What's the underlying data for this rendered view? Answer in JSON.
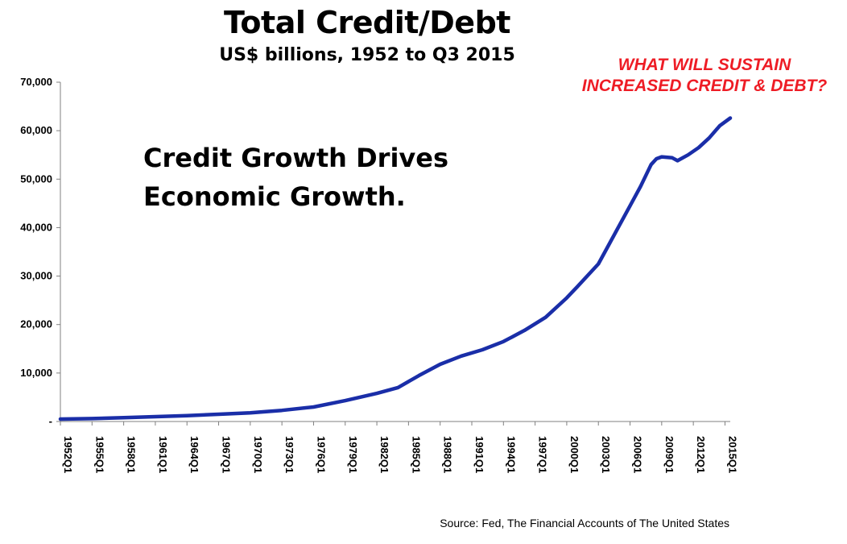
{
  "chart_data": {
    "type": "line",
    "title": "Total Credit/Debt",
    "subtitle": "US$ billions, 1952 to Q3 2015",
    "annotations": [
      "WHAT WILL SUSTAIN",
      "INCREASED CREDIT & DEBT?"
    ],
    "headline": [
      "Credit Growth Drives",
      "Economic Growth."
    ],
    "source": "Source: Fed, The Financial Accounts of The United States",
    "ylim": [
      0,
      70000
    ],
    "y_ticks": [
      0,
      10000,
      20000,
      30000,
      40000,
      50000,
      60000,
      70000
    ],
    "y_tick_labels": [
      "-",
      "10,000",
      "20,000",
      "30,000",
      "40,000",
      "50,000",
      "60,000",
      "70,000"
    ],
    "x_tick_labels": [
      "1952Q1",
      "1955Q1",
      "1958Q1",
      "1961Q1",
      "1964Q1",
      "1967Q1",
      "1970Q1",
      "1973Q1",
      "1976Q1",
      "1979Q1",
      "1982Q1",
      "1985Q1",
      "1988Q1",
      "1991Q1",
      "1994Q1",
      "1997Q1",
      "2000Q1",
      "2003Q1",
      "2006Q1",
      "2009Q1",
      "2012Q1",
      "2015Q1"
    ],
    "xlim": [
      1952.0,
      2015.5
    ],
    "grid": false,
    "line_color": "#1a2ea8",
    "series": [
      {
        "x": [
          1952.0,
          1955.0,
          1958.0,
          1961.0,
          1964.0,
          1967.0,
          1970.0,
          1973.0,
          1976.0,
          1979.0,
          1982.0,
          1984.0,
          1986.0,
          1988.0,
          1990.0,
          1992.0,
          1994.0,
          1996.0,
          1998.0,
          2000.0,
          2001.0,
          2003.0,
          2004.0,
          2005.0,
          2006.0,
          2007.0,
          2008.0,
          2008.5,
          2009.0,
          2010.0,
          2010.5,
          2011.5,
          2012.5,
          2013.5,
          2014.5,
          2015.5
        ],
        "y": [
          500,
          600,
          800,
          1000,
          1200,
          1500,
          1800,
          2300,
          3000,
          4300,
          5800,
          7000,
          9500,
          11800,
          13500,
          14800,
          16500,
          18800,
          21500,
          25500,
          27800,
          32500,
          36500,
          40500,
          44500,
          48500,
          53000,
          54200,
          54600,
          54400,
          53800,
          55000,
          56500,
          58500,
          61000,
          62600
        ]
      }
    ]
  }
}
